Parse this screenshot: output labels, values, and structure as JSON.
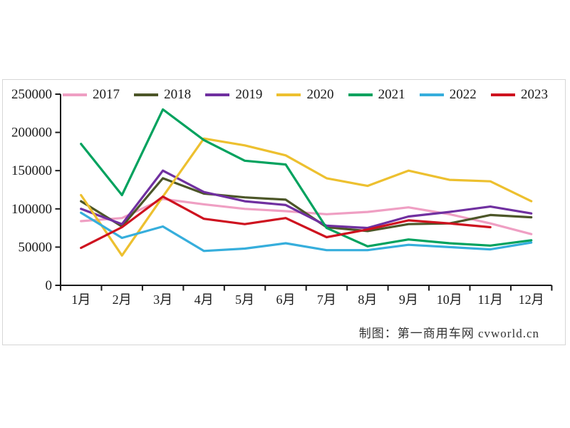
{
  "page": {
    "caption": "制图：第一商用车网 cvworld.cn"
  },
  "chart_data": {
    "type": "line",
    "title": "",
    "xlabel": "",
    "ylabel": "",
    "grid": false,
    "legend_position": "top",
    "ylim": [
      0,
      250000
    ],
    "yticks": [
      0,
      50000,
      100000,
      150000,
      200000,
      250000
    ],
    "categories": [
      "1月",
      "2月",
      "3月",
      "4月",
      "5月",
      "6月",
      "7月",
      "8月",
      "9月",
      "10月",
      "11月",
      "12月"
    ],
    "series": [
      {
        "name": "2017",
        "color": "#EF9FC3",
        "values": [
          84000,
          88000,
          113000,
          106000,
          100000,
          97000,
          93000,
          96000,
          102000,
          93000,
          81000,
          67000
        ]
      },
      {
        "name": "2018",
        "color": "#4C5628",
        "values": [
          110000,
          77000,
          140000,
          120000,
          115000,
          112000,
          76000,
          71000,
          80000,
          81000,
          92000,
          89000
        ]
      },
      {
        "name": "2019",
        "color": "#7030A0",
        "values": [
          100000,
          80000,
          150000,
          122000,
          110000,
          105000,
          78000,
          75000,
          90000,
          96000,
          103000,
          94000
        ]
      },
      {
        "name": "2020",
        "color": "#EDC02F",
        "values": [
          118000,
          39000,
          116000,
          192000,
          183000,
          170000,
          140000,
          130000,
          150000,
          138000,
          136000,
          110000
        ]
      },
      {
        "name": "2021",
        "color": "#00A25E",
        "values": [
          185000,
          118000,
          230000,
          190000,
          163000,
          158000,
          75000,
          51000,
          60000,
          55000,
          52000,
          59000
        ]
      },
      {
        "name": "2022",
        "color": "#36AEDC",
        "values": [
          95000,
          62000,
          77000,
          45000,
          48000,
          55000,
          46000,
          46000,
          53000,
          50000,
          47000,
          56000
        ]
      },
      {
        "name": "2023",
        "color": "#CE121F",
        "values": [
          49000,
          76000,
          116000,
          87000,
          80000,
          88000,
          63000,
          73000,
          85000,
          81000,
          76000,
          null
        ]
      }
    ]
  }
}
